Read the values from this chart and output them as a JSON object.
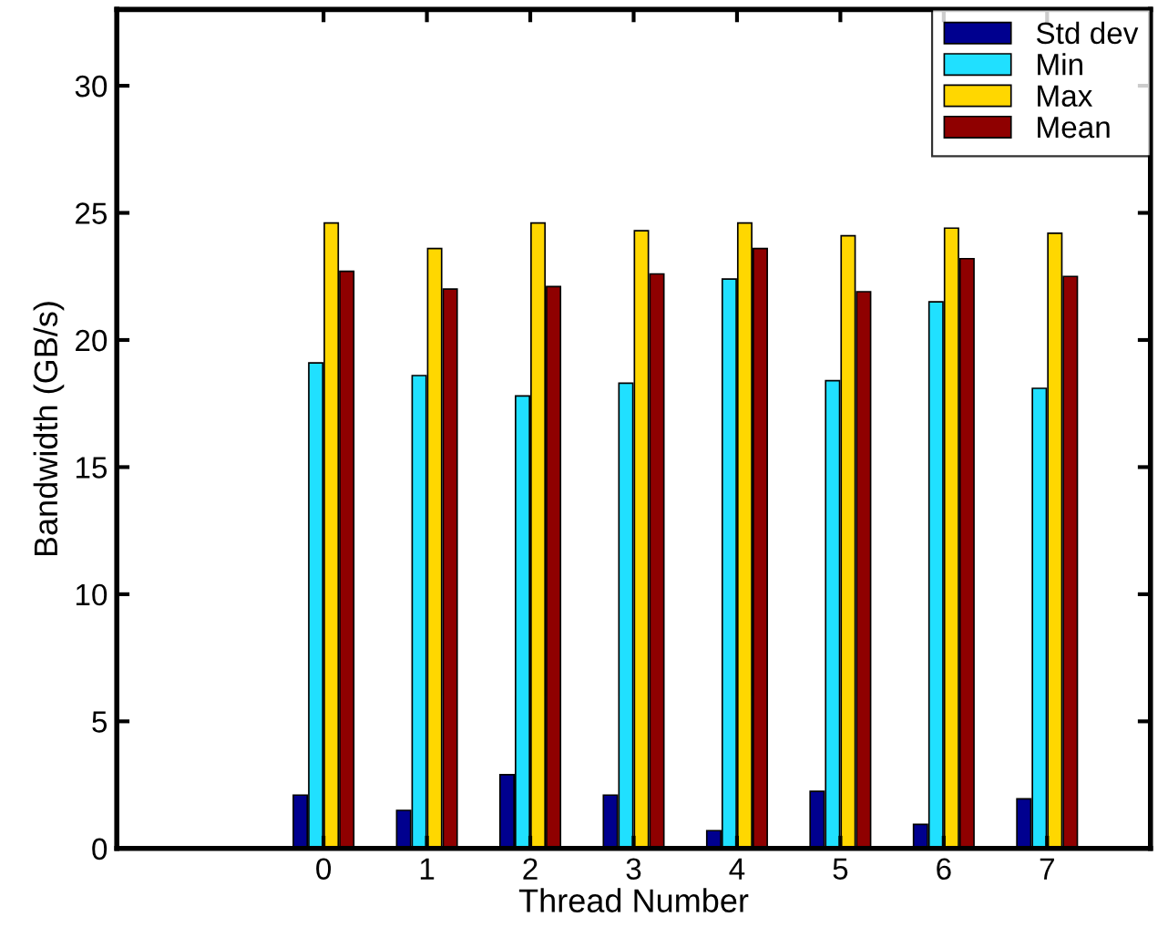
{
  "chart_data": {
    "type": "bar",
    "xlabel": "Thread Number",
    "ylabel": "Bandwidth (GB/s)",
    "x": [
      0,
      1,
      2,
      3,
      4,
      5,
      6,
      7
    ],
    "series": [
      {
        "name": "Std dev",
        "color": "#00008f",
        "values": [
          2.1,
          1.5,
          2.9,
          2.1,
          0.7,
          2.25,
          0.95,
          1.95
        ]
      },
      {
        "name": "Min",
        "color": "#20e0ff",
        "values": [
          19.1,
          18.6,
          17.8,
          18.3,
          22.4,
          18.4,
          21.5,
          18.1
        ]
      },
      {
        "name": "Max",
        "color": "#ffd700",
        "values": [
          24.6,
          23.6,
          24.6,
          24.3,
          24.6,
          24.1,
          24.4,
          24.2
        ]
      },
      {
        "name": "Mean",
        "color": "#8f0000",
        "values": [
          22.7,
          22.0,
          22.1,
          22.6,
          23.6,
          21.9,
          23.2,
          22.5
        ]
      }
    ],
    "xlim": [
      -2,
      8
    ],
    "xticks": [
      0,
      1,
      2,
      3,
      4,
      5,
      6,
      7
    ],
    "ylim": [
      0,
      33
    ],
    "yticks": [
      0,
      5,
      10,
      15,
      20,
      25,
      30
    ],
    "grid": false,
    "legend": "top right"
  }
}
